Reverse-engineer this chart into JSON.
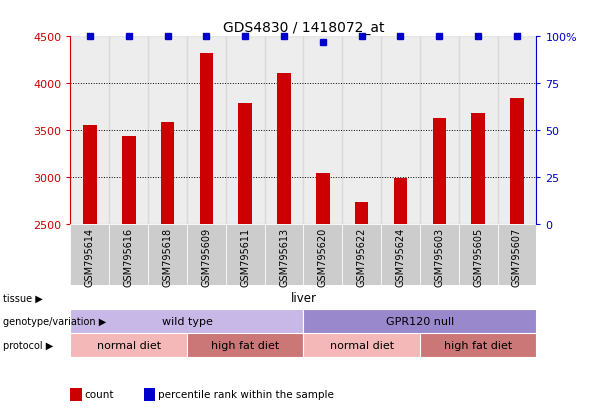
{
  "title": "GDS4830 / 1418072_at",
  "samples": [
    "GSM795614",
    "GSM795616",
    "GSM795618",
    "GSM795609",
    "GSM795611",
    "GSM795613",
    "GSM795620",
    "GSM795622",
    "GSM795624",
    "GSM795603",
    "GSM795605",
    "GSM795607"
  ],
  "counts": [
    3550,
    3440,
    3590,
    4320,
    3790,
    4110,
    3040,
    2730,
    2990,
    3630,
    3680,
    3840
  ],
  "percentile_ranks": [
    100,
    100,
    100,
    100,
    100,
    100,
    97,
    100,
    100,
    100,
    100,
    100
  ],
  "bar_color": "#cc0000",
  "dot_color": "#0000cc",
  "ylim_left": [
    2500,
    4500
  ],
  "ylim_right": [
    0,
    100
  ],
  "yticks_left": [
    2500,
    3000,
    3500,
    4000,
    4500
  ],
  "yticks_right": [
    0,
    25,
    50,
    75,
    100
  ],
  "tissue_label": "tissue",
  "tissue_value": "liver",
  "tissue_color": "#5cb85c",
  "genotype_label": "genotype/variation",
  "genotype_groups": [
    {
      "label": "wild type",
      "span": [
        0,
        6
      ],
      "color": "#c8b8e8"
    },
    {
      "label": "GPR120 null",
      "span": [
        6,
        12
      ],
      "color": "#9988cc"
    }
  ],
  "protocol_groups": [
    {
      "label": "normal diet",
      "span": [
        0,
        3
      ],
      "color": "#f5b8b8"
    },
    {
      "label": "high fat diet",
      "span": [
        3,
        6
      ],
      "color": "#cc7777"
    },
    {
      "label": "normal diet",
      "span": [
        6,
        9
      ],
      "color": "#f5b8b8"
    },
    {
      "label": "high fat diet",
      "span": [
        9,
        12
      ],
      "color": "#cc7777"
    }
  ],
  "protocol_label": "protocol",
  "xlabel_color": "#cc0000",
  "ylabel_right_color": "#0000cc",
  "bar_width": 0.35,
  "bg_color": "#ffffff",
  "col_bg_color": "#cccccc",
  "figsize": [
    6.13,
    4.14
  ],
  "dpi": 100
}
